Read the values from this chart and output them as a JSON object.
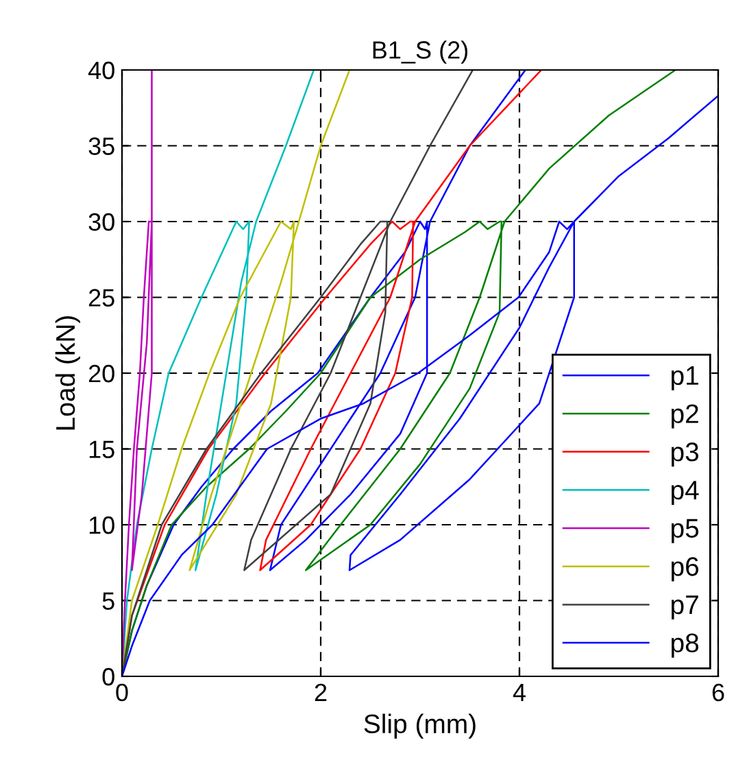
{
  "chart_data": {
    "type": "line",
    "title": "B1_S (2)",
    "xlabel": "Slip (mm)",
    "ylabel": "Load (kN)",
    "xlim": [
      0,
      6
    ],
    "xticks": [
      0,
      2,
      4,
      6
    ],
    "ylim": [
      0,
      40
    ],
    "yticks": [
      0,
      5,
      10,
      15,
      20,
      25,
      30,
      35,
      40
    ],
    "grid": true,
    "line_style": "solid",
    "legend": "bottom right",
    "series": [
      {
        "name": "p1",
        "color": "#0000ff",
        "x": [
          0,
          0.1,
          0.25,
          0.52,
          0.8,
          1.12,
          1.5,
          1.97,
          2.5,
          2.85,
          3.0,
          3.05,
          3.07,
          3.07,
          2.8,
          2.3,
          1.85,
          1.49,
          1.6,
          2.1,
          2.6,
          2.95,
          3.1,
          3.5,
          4.06
        ],
        "values": [
          0,
          3,
          6,
          10,
          12.5,
          15,
          17.5,
          20,
          25,
          28,
          30,
          29.5,
          30,
          20,
          16,
          12,
          9,
          7,
          10,
          15,
          20,
          25,
          30,
          35,
          40
        ]
      },
      {
        "name": "p2",
        "color": "#008000",
        "x": [
          0,
          0.1,
          0.25,
          0.5,
          0.85,
          1.28,
          1.65,
          2.0,
          2.5,
          3.0,
          3.45,
          3.6,
          3.68,
          3.8,
          3.82,
          3.8,
          3.5,
          3.0,
          2.5,
          1.85,
          2.2,
          2.8,
          3.3,
          3.6,
          3.85,
          4.3,
          4.9,
          5.57
        ],
        "values": [
          0,
          3,
          6,
          10,
          12.5,
          15,
          17.5,
          20,
          25,
          27.5,
          29.3,
          30,
          29.5,
          30,
          30,
          24,
          19,
          14,
          10,
          7,
          10,
          15,
          20,
          25,
          30,
          33.5,
          37,
          40
        ]
      },
      {
        "name": "p3",
        "color": "#ff0000",
        "x": [
          0,
          0.1,
          0.43,
          0.87,
          1.44,
          2.05,
          2.5,
          2.72,
          2.8,
          2.9,
          2.93,
          2.92,
          2.75,
          2.4,
          1.9,
          1.39,
          1.45,
          1.9,
          2.3,
          2.7,
          2.95,
          3.5,
          4.22
        ],
        "values": [
          0,
          4,
          10,
          15,
          20,
          25,
          28.5,
          30,
          29.5,
          30,
          30,
          25,
          20,
          15,
          10,
          7,
          9,
          15,
          20,
          25,
          30,
          35,
          40
        ]
      },
      {
        "name": "p4",
        "color": "#00bfbf",
        "x": [
          0,
          0.05,
          0.15,
          0.3,
          0.47,
          0.8,
          1.15,
          1.22,
          1.28,
          1.25,
          1.15,
          0.95,
          0.74,
          0.85,
          1.05,
          1.2,
          1.35,
          1.65,
          1.93
        ],
        "values": [
          0,
          5,
          10,
          15,
          20,
          25,
          30,
          29.5,
          30,
          25,
          18,
          12,
          7,
          12,
          20,
          26,
          30,
          35,
          40
        ]
      },
      {
        "name": "p5",
        "color": "#bf00bf",
        "x": [
          0,
          0.03,
          0.07,
          0.12,
          0.18,
          0.22,
          0.27,
          0.3,
          0.3,
          0.2,
          0.1,
          0.15,
          0.25,
          0.3,
          0.3
        ],
        "values": [
          0,
          5,
          10,
          15,
          20,
          25,
          30,
          30,
          20,
          12,
          7,
          15,
          22,
          30,
          40
        ]
      },
      {
        "name": "p6",
        "color": "#bfbf00",
        "x": [
          0,
          0.1,
          0.36,
          0.6,
          0.88,
          1.19,
          1.6,
          1.7,
          1.73,
          1.7,
          1.5,
          1.15,
          0.68,
          0.9,
          1.3,
          1.6,
          1.78,
          2.0,
          2.29
        ],
        "values": [
          0,
          5,
          10,
          15,
          20,
          25,
          30,
          29.5,
          30,
          25,
          18,
          12,
          7,
          12,
          20,
          26,
          30,
          35,
          40
        ]
      },
      {
        "name": "p7",
        "color": "#404040",
        "x": [
          0,
          0.1,
          0.4,
          0.85,
          1.4,
          2.0,
          2.4,
          2.6,
          2.67,
          2.65,
          2.5,
          2.1,
          1.23,
          1.3,
          1.7,
          2.1,
          2.4,
          2.7,
          3.1,
          3.53
        ],
        "values": [
          0,
          4,
          10,
          15,
          20,
          25,
          28.5,
          30,
          30,
          24,
          18,
          12,
          7,
          9,
          15,
          20,
          25,
          30,
          35,
          40
        ]
      },
      {
        "name": "p8",
        "color": "#0000ff",
        "x": [
          0,
          0.1,
          0.28,
          0.6,
          0.91,
          1.46,
          2.0,
          2.43,
          2.98,
          3.5,
          3.99,
          4.3,
          4.4,
          4.48,
          4.55,
          4.55,
          4.2,
          3.5,
          2.8,
          2.29,
          2.3,
          2.8,
          3.4,
          4.0,
          4.3,
          4.55,
          5.0,
          5.5,
          6.0
        ],
        "values": [
          0,
          2,
          5,
          8,
          10,
          15,
          17,
          18,
          20,
          22.5,
          25,
          28,
          30,
          29.5,
          30,
          25,
          18,
          13,
          9,
          7,
          8,
          12,
          17,
          23,
          27,
          30,
          33,
          35.5,
          38.3
        ]
      }
    ]
  }
}
